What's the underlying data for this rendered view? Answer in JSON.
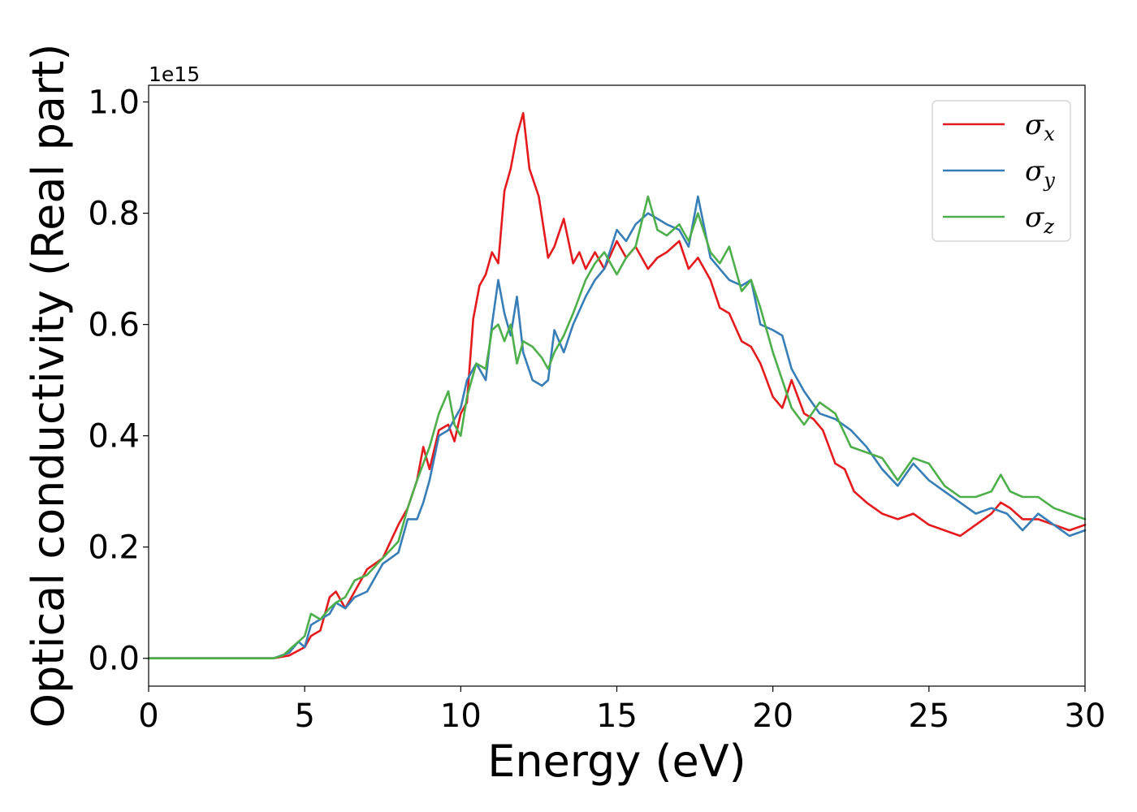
{
  "chart_data": {
    "type": "line",
    "xlabel": "Energy (eV)",
    "ylabel": "Optical conductivity (Real part)",
    "offset_text": "1e15",
    "xlim": [
      0,
      30
    ],
    "ylim": [
      -0.05,
      1.03
    ],
    "xticks": [
      0,
      5,
      10,
      15,
      20,
      25,
      30
    ],
    "xtick_labels": [
      "0",
      "5",
      "10",
      "15",
      "20",
      "25",
      "30"
    ],
    "yticks": [
      0.0,
      0.2,
      0.4,
      0.6,
      0.8,
      1.0
    ],
    "ytick_labels": [
      "0.0",
      "0.2",
      "0.4",
      "0.6",
      "0.8",
      "1.0"
    ],
    "grid": false,
    "legend_position": "upper right",
    "series": [
      {
        "name": "σx",
        "symbol": "σ",
        "subscript": "x",
        "color": "#e41a1c",
        "x": [
          0,
          1,
          2,
          3,
          4,
          4.5,
          5,
          5.2,
          5.5,
          5.8,
          6,
          6.3,
          6.6,
          7,
          7.5,
          8,
          8.3,
          8.6,
          8.8,
          9,
          9.3,
          9.6,
          9.8,
          10,
          10.2,
          10.4,
          10.6,
          10.8,
          11,
          11.2,
          11.4,
          11.6,
          11.8,
          12,
          12.2,
          12.5,
          12.8,
          13,
          13.3,
          13.6,
          13.8,
          14,
          14.3,
          14.6,
          15,
          15.3,
          15.6,
          16,
          16.3,
          16.6,
          17,
          17.3,
          17.6,
          18,
          18.3,
          18.6,
          19,
          19.3,
          19.6,
          20,
          20.3,
          20.6,
          21,
          21.3,
          21.6,
          22,
          22.3,
          22.6,
          23,
          23.5,
          24,
          24.5,
          25,
          25.5,
          26,
          26.5,
          27,
          27.3,
          27.6,
          28,
          28.5,
          29,
          29.5,
          30
        ],
        "values": [
          0.0,
          0.0,
          0.0,
          0.0,
          0.0,
          0.005,
          0.02,
          0.04,
          0.05,
          0.11,
          0.12,
          0.09,
          0.12,
          0.16,
          0.18,
          0.24,
          0.27,
          0.32,
          0.38,
          0.34,
          0.41,
          0.42,
          0.39,
          0.44,
          0.46,
          0.61,
          0.67,
          0.69,
          0.73,
          0.71,
          0.84,
          0.88,
          0.94,
          0.98,
          0.88,
          0.83,
          0.72,
          0.74,
          0.79,
          0.71,
          0.73,
          0.7,
          0.73,
          0.7,
          0.75,
          0.72,
          0.74,
          0.7,
          0.72,
          0.73,
          0.75,
          0.7,
          0.72,
          0.68,
          0.63,
          0.62,
          0.57,
          0.56,
          0.53,
          0.47,
          0.45,
          0.5,
          0.44,
          0.43,
          0.41,
          0.35,
          0.34,
          0.3,
          0.28,
          0.26,
          0.25,
          0.26,
          0.24,
          0.23,
          0.22,
          0.24,
          0.26,
          0.28,
          0.27,
          0.25,
          0.25,
          0.24,
          0.23,
          0.24
        ]
      },
      {
        "name": "σy",
        "symbol": "σ",
        "subscript": "y",
        "color": "#377eb8",
        "x": [
          0,
          1,
          2,
          3,
          4,
          4.5,
          4.8,
          5,
          5.2,
          5.5,
          5.8,
          6,
          6.3,
          6.6,
          7,
          7.5,
          8,
          8.3,
          8.6,
          8.8,
          9,
          9.3,
          9.6,
          9.8,
          10,
          10.2,
          10.5,
          10.8,
          11,
          11.2,
          11.4,
          11.6,
          11.8,
          12,
          12.3,
          12.6,
          12.8,
          13,
          13.3,
          13.6,
          14,
          14.3,
          14.6,
          15,
          15.3,
          15.6,
          16,
          16.3,
          16.6,
          17,
          17.3,
          17.6,
          18,
          18.3,
          18.6,
          19,
          19.3,
          19.6,
          20,
          20.3,
          20.6,
          21,
          21.5,
          22,
          22.5,
          23,
          23.5,
          24,
          24.5,
          25,
          25.5,
          26,
          26.5,
          27,
          27.5,
          28,
          28.5,
          29,
          29.5,
          30
        ],
        "values": [
          0.0,
          0.0,
          0.0,
          0.0,
          0.0,
          0.01,
          0.03,
          0.02,
          0.06,
          0.07,
          0.08,
          0.1,
          0.09,
          0.11,
          0.12,
          0.17,
          0.19,
          0.25,
          0.25,
          0.28,
          0.32,
          0.4,
          0.41,
          0.43,
          0.45,
          0.5,
          0.53,
          0.5,
          0.6,
          0.68,
          0.62,
          0.58,
          0.65,
          0.55,
          0.5,
          0.49,
          0.5,
          0.59,
          0.55,
          0.6,
          0.65,
          0.68,
          0.7,
          0.77,
          0.75,
          0.78,
          0.8,
          0.79,
          0.78,
          0.77,
          0.74,
          0.83,
          0.72,
          0.7,
          0.68,
          0.67,
          0.68,
          0.6,
          0.59,
          0.58,
          0.52,
          0.48,
          0.44,
          0.43,
          0.41,
          0.38,
          0.34,
          0.31,
          0.35,
          0.32,
          0.3,
          0.28,
          0.26,
          0.27,
          0.26,
          0.23,
          0.26,
          0.24,
          0.22,
          0.23
        ]
      },
      {
        "name": "σz",
        "symbol": "σ",
        "subscript": "z",
        "color": "#4daf4a",
        "x": [
          0,
          1,
          2,
          3,
          4,
          4.3,
          4.6,
          4.8,
          5,
          5.2,
          5.5,
          5.8,
          6,
          6.3,
          6.6,
          7,
          7.5,
          8,
          8.3,
          8.6,
          8.8,
          9,
          9.3,
          9.6,
          9.8,
          10,
          10.2,
          10.5,
          10.8,
          11,
          11.2,
          11.4,
          11.6,
          11.8,
          12,
          12.3,
          12.6,
          12.8,
          13,
          13.3,
          13.6,
          14,
          14.3,
          14.6,
          15,
          15.3,
          15.6,
          16,
          16.3,
          16.6,
          17,
          17.3,
          17.6,
          18,
          18.3,
          18.6,
          19,
          19.3,
          19.6,
          20,
          20.3,
          20.6,
          21,
          21.5,
          22,
          22.5,
          23,
          23.5,
          24,
          24.5,
          25,
          25.5,
          26,
          26.5,
          27,
          27.3,
          27.6,
          28,
          28.5,
          29,
          29.5,
          30
        ],
        "values": [
          0.0,
          0.0,
          0.0,
          0.0,
          0.0,
          0.005,
          0.02,
          0.03,
          0.04,
          0.08,
          0.07,
          0.09,
          0.1,
          0.11,
          0.14,
          0.15,
          0.18,
          0.21,
          0.27,
          0.32,
          0.35,
          0.38,
          0.44,
          0.48,
          0.42,
          0.4,
          0.47,
          0.53,
          0.52,
          0.59,
          0.6,
          0.57,
          0.6,
          0.53,
          0.57,
          0.56,
          0.54,
          0.52,
          0.55,
          0.58,
          0.62,
          0.68,
          0.71,
          0.73,
          0.69,
          0.72,
          0.74,
          0.83,
          0.77,
          0.76,
          0.78,
          0.75,
          0.8,
          0.73,
          0.71,
          0.74,
          0.66,
          0.68,
          0.63,
          0.55,
          0.5,
          0.45,
          0.42,
          0.46,
          0.44,
          0.38,
          0.37,
          0.36,
          0.32,
          0.36,
          0.35,
          0.31,
          0.29,
          0.29,
          0.3,
          0.33,
          0.3,
          0.29,
          0.29,
          0.27,
          0.26,
          0.25
        ]
      }
    ]
  }
}
